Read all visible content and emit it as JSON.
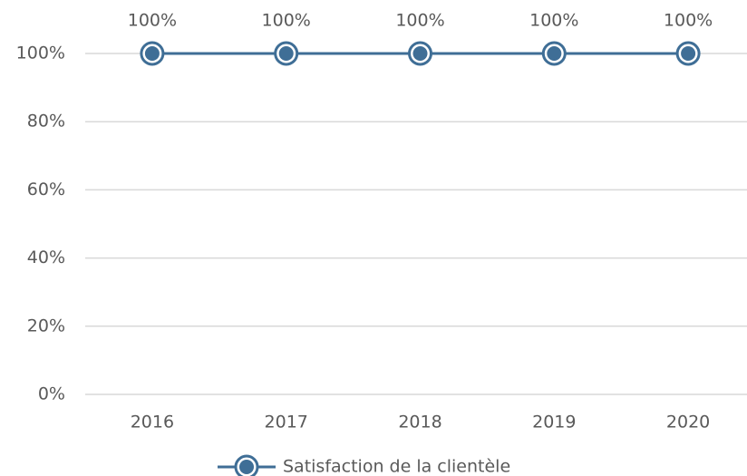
{
  "chart_data": {
    "type": "line",
    "categories": [
      "2016",
      "2017",
      "2018",
      "2019",
      "2020"
    ],
    "series": [
      {
        "name": "Satisfaction de la clientèle",
        "color": "#3f6e96",
        "values": [
          100,
          100,
          100,
          100,
          100
        ],
        "value_labels": [
          "100%",
          "100%",
          "100%",
          "100%",
          "100%"
        ]
      }
    ],
    "ylim": [
      0,
      100
    ],
    "yticks": [
      {
        "value": 0,
        "label": "0%"
      },
      {
        "value": 20,
        "label": "20%"
      },
      {
        "value": 40,
        "label": "40%"
      },
      {
        "value": 60,
        "label": "60%"
      },
      {
        "value": 80,
        "label": "80%"
      },
      {
        "value": 100,
        "label": "100%"
      }
    ],
    "grid": true,
    "legend": "bottom"
  }
}
